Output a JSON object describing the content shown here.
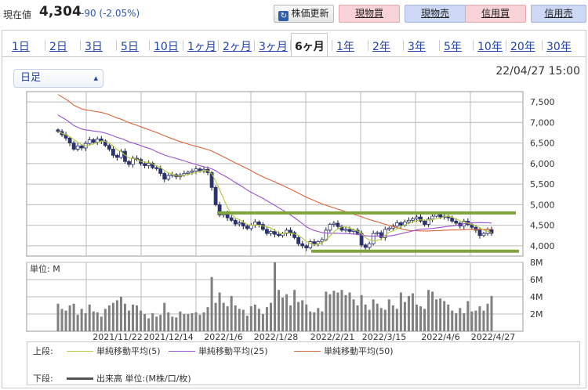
{
  "header": {
    "price_label": "現在値",
    "price_value": "4,304",
    "change": "-90 (-2.05%)",
    "refresh_label": "株価更新",
    "buttons": [
      "現物買",
      "現物売",
      "信用買",
      "信用売"
    ]
  },
  "tabs": [
    "1日",
    "2日",
    "3日",
    "5日",
    "10日",
    "1ヶ月",
    "2ヶ月",
    "3ヶ月",
    "6ヶ月",
    "1年",
    "2年",
    "3年",
    "5年",
    "10年",
    "20年",
    "30年"
  ],
  "active_tab": "6ヶ月",
  "chart_type_select": "日足",
  "datetime": "22/04/27 15:00",
  "colors": {
    "up": "#ffffff",
    "down": "#2a3370",
    "ma5": "#b5c93a",
    "ma25": "#9a50d0",
    "ma50": "#d9643a",
    "support": "#7fa43c",
    "volume": "#808080"
  },
  "chart_data": [
    {
      "type": "candlestick",
      "y_ticks": [
        "7,500",
        "7,000",
        "6,500",
        "6,000",
        "5,500",
        "5,000",
        "4,500",
        "4,000"
      ],
      "ylim": [
        3750,
        7750
      ],
      "x_ticks": [
        "2021/11/22",
        "2021/12/14",
        "2022/1/6",
        "2022/1/28",
        "2022/2/21",
        "2022/3/15",
        "2022/4/6",
        "2022/4/27"
      ],
      "closes": [
        6780,
        6700,
        6620,
        6500,
        6350,
        6430,
        6380,
        6490,
        6580,
        6520,
        6600,
        6550,
        6440,
        6350,
        6200,
        6150,
        6300,
        6050,
        5980,
        6130,
        6100,
        6000,
        5950,
        6010,
        5900,
        5880,
        5760,
        5620,
        5710,
        5730,
        5680,
        5720,
        5760,
        5790,
        5820,
        5870,
        5820,
        5860,
        5780,
        5420,
        5000,
        4750,
        4800,
        4680,
        4620,
        4530,
        4560,
        4480,
        4420,
        4500,
        4580,
        4520,
        4400,
        4300,
        4350,
        4280,
        4250,
        4300,
        4380,
        4320,
        4200,
        4050,
        4000,
        3950,
        4100,
        4050,
        4100,
        4150,
        4380,
        4520,
        4550,
        4470,
        4380,
        4400,
        4350,
        4380,
        4300,
        4020,
        3960,
        4050,
        4300,
        4320,
        4200,
        4400,
        4430,
        4480,
        4560,
        4500,
        4580,
        4620,
        4660,
        4700,
        4600,
        4520,
        4650,
        4720,
        4780,
        4700,
        4720,
        4680,
        4600,
        4550,
        4480,
        4600,
        4520,
        4450,
        4380,
        4250,
        4300,
        4394,
        4304
      ],
      "ma5_label": "単純移動平均(5)",
      "ma25_label": "単純移動平均(25)",
      "ma50_label": "単純移動平均(50)",
      "support_levels": [
        4800,
        3870
      ]
    },
    {
      "type": "bar",
      "unit_label": "単位: M",
      "y_ticks": [
        "8M",
        "6M",
        "4M",
        "2M"
      ],
      "ylim": [
        0,
        8
      ],
      "volumes": [
        3.2,
        2.6,
        2.4,
        3.0,
        3.2,
        1.9,
        2.6,
        2.1,
        3.1,
        2.3,
        2.2,
        1.7,
        2.6,
        3.0,
        3.3,
        3.6,
        4.0,
        3.2,
        2.4,
        3.1,
        3.0,
        2.4,
        2.0,
        1.5,
        2.1,
        1.7,
        1.9,
        3.3,
        2.2,
        1.7,
        1.6,
        2.3,
        2.0,
        2.0,
        2.1,
        2.2,
        1.9,
        2.2,
        2.8,
        6.3,
        3.3,
        4.5,
        3.3,
        2.9,
        4.1,
        3.0,
        2.6,
        2.5,
        1.8,
        2.9,
        3.1,
        2.6,
        2.0,
        2.8,
        3.3,
        8.0,
        4.8,
        3.9,
        4.3,
        3.0,
        4.8,
        3.4,
        3.6,
        3.1,
        2.3,
        2.2,
        2.7,
        2.3,
        4.6,
        4.3,
        4.7,
        4.5,
        4.8,
        4.2,
        4.5,
        3.7,
        3.0,
        4.2,
        3.1,
        2.5,
        3.7,
        3.2,
        2.7,
        2.5,
        3.7,
        3.0,
        2.6,
        4.5,
        3.4,
        4.1,
        4.4,
        3.1,
        2.9,
        2.6,
        4.8,
        4.6,
        3.7,
        3.8,
        3.5,
        3.1,
        2.4,
        2.1,
        2.7,
        2.1,
        3.5,
        2.3,
        2.4,
        2.9,
        2.4,
        3.2,
        4.1
      ]
    }
  ],
  "legend": {
    "upper_label": "上段:",
    "lower_label": "下段:",
    "ma5": "単純移動平均(5)",
    "ma25": "単純移動平均(25)",
    "ma50": "単純移動平均(50)",
    "volume": "出来高 単位:(M株/口/枚)"
  }
}
